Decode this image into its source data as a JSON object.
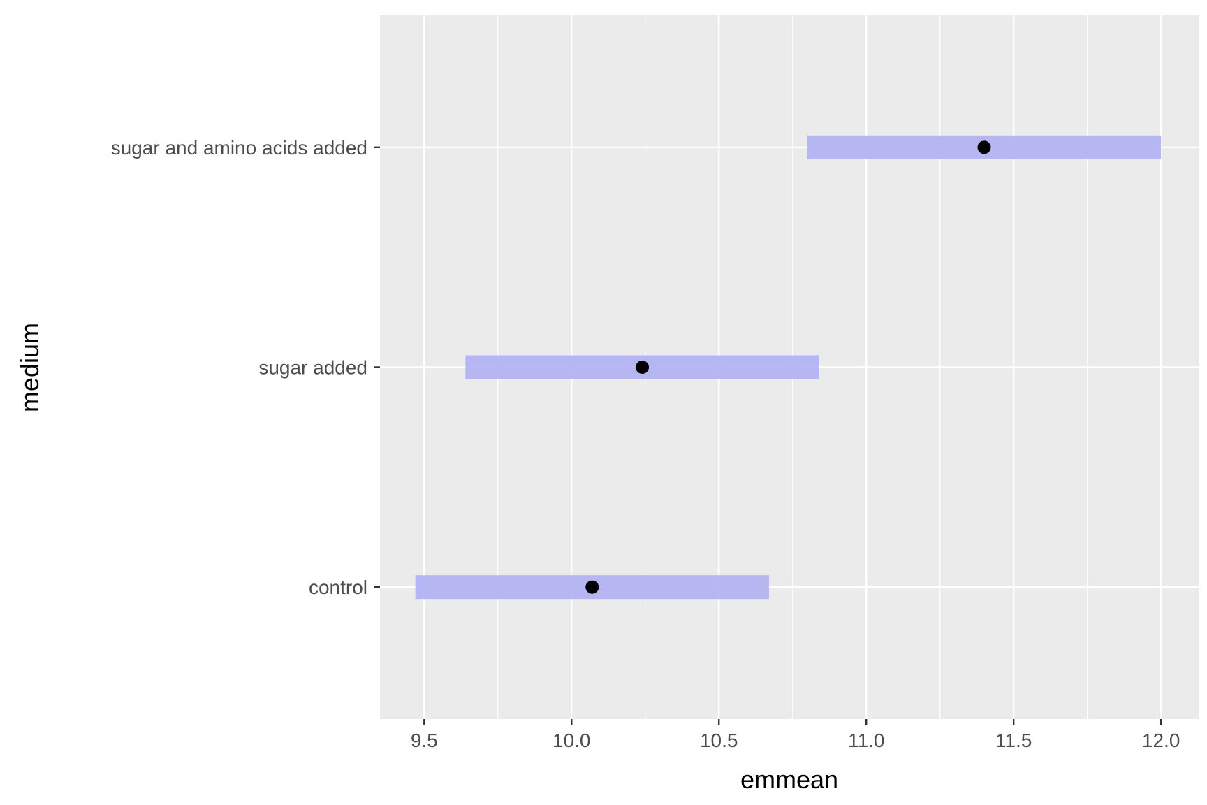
{
  "chart_data": {
    "type": "interval",
    "xlabel": "emmean",
    "ylabel": "medium",
    "xlim": [
      9.35,
      12.13
    ],
    "x_ticks": [
      "9.5",
      "10.0",
      "10.5",
      "11.0",
      "11.5",
      "12.0"
    ],
    "grid": true,
    "categories": [
      "control",
      "sugar added",
      "sugar and amino acids added"
    ],
    "estimate": [
      10.07,
      10.24,
      11.4
    ],
    "lower": [
      9.47,
      9.64,
      10.8
    ],
    "upper": [
      10.67,
      10.84,
      12.0
    ],
    "colors": {
      "panel": "#ebebeb",
      "grid": "#ffffff",
      "interval": "#b3b3f2",
      "point": "#000000",
      "tick": "#333333"
    }
  }
}
